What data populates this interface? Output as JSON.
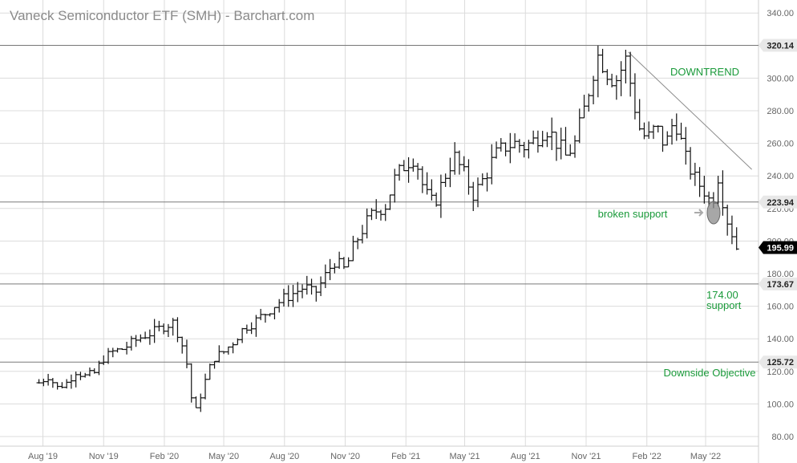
{
  "chart_data": {
    "type": "ohlc",
    "title": "Vaneck Semiconductor ETF (SMH) - Barchart.com",
    "frequency": "weekly",
    "x_tick_labels": [
      "Aug '19",
      "Nov '19",
      "Feb '20",
      "May '20",
      "Aug '20",
      "Nov '20",
      "Feb '21",
      "May '21",
      "Aug '21",
      "Nov '21",
      "Feb '22",
      "May '22"
    ],
    "y_ticks": [
      80,
      100,
      120,
      140,
      160,
      180,
      200,
      220,
      240,
      260,
      280,
      300,
      320,
      340
    ],
    "y_tick_labels": [
      "80.00",
      "100.00",
      "120.00",
      "140.00",
      "160.00",
      "180.00",
      "200.00",
      "220.00",
      "240.00",
      "260.00",
      "280.00",
      "300.00",
      "320.00",
      "340.00"
    ],
    "ylim": [
      76,
      346
    ],
    "grid": true,
    "series_points": [
      [
        "2019-07-26",
        113
      ],
      [
        "2019-08-09",
        117
      ],
      [
        "2019-08-23",
        110
      ],
      [
        "2019-09-06",
        113
      ],
      [
        "2019-09-20",
        120
      ],
      [
        "2019-10-04",
        117
      ],
      [
        "2019-10-18",
        119
      ],
      [
        "2019-11-01",
        128
      ],
      [
        "2019-11-15",
        132
      ],
      [
        "2019-12-01",
        134
      ],
      [
        "2019-12-15",
        138
      ],
      [
        "2020-01-01",
        142
      ],
      [
        "2020-01-15",
        144
      ],
      [
        "2020-02-01",
        148
      ],
      [
        "2020-02-15",
        150
      ],
      [
        "2020-02-25",
        140
      ],
      [
        "2020-03-05",
        128
      ],
      [
        "2020-03-12",
        105
      ],
      [
        "2020-03-20",
        96
      ],
      [
        "2020-04-01",
        112
      ],
      [
        "2020-04-15",
        128
      ],
      [
        "2020-05-01",
        132
      ],
      [
        "2020-05-15",
        138
      ],
      [
        "2020-06-01",
        147
      ],
      [
        "2020-06-15",
        150
      ],
      [
        "2020-07-01",
        155
      ],
      [
        "2020-07-15",
        160
      ],
      [
        "2020-08-01",
        165
      ],
      [
        "2020-08-15",
        168
      ],
      [
        "2020-09-01",
        172
      ],
      [
        "2020-09-15",
        167
      ],
      [
        "2020-10-01",
        178
      ],
      [
        "2020-10-15",
        188
      ],
      [
        "2020-11-01",
        182
      ],
      [
        "2020-11-15",
        198
      ],
      [
        "2020-12-01",
        210
      ],
      [
        "2020-12-15",
        218
      ],
      [
        "2021-01-01",
        222
      ],
      [
        "2021-01-15",
        238
      ],
      [
        "2021-02-01",
        248
      ],
      [
        "2021-02-15",
        252
      ],
      [
        "2021-03-01",
        230
      ],
      [
        "2021-03-15",
        222
      ],
      [
        "2021-04-01",
        240
      ],
      [
        "2021-04-15",
        252
      ],
      [
        "2021-05-01",
        240
      ],
      [
        "2021-05-15",
        228
      ],
      [
        "2021-06-01",
        240
      ],
      [
        "2021-06-15",
        252
      ],
      [
        "2021-07-01",
        258
      ],
      [
        "2021-07-15",
        260
      ],
      [
        "2021-08-01",
        258
      ],
      [
        "2021-08-15",
        262
      ],
      [
        "2021-09-01",
        270
      ],
      [
        "2021-09-15",
        262
      ],
      [
        "2021-10-01",
        252
      ],
      [
        "2021-10-15",
        260
      ],
      [
        "2021-11-01",
        285
      ],
      [
        "2021-11-10",
        302
      ],
      [
        "2021-11-20",
        315
      ],
      [
        "2021-12-01",
        305
      ],
      [
        "2021-12-15",
        298
      ],
      [
        "2022-01-01",
        312
      ],
      [
        "2022-01-10",
        290
      ],
      [
        "2022-01-20",
        270
      ],
      [
        "2022-02-01",
        262
      ],
      [
        "2022-02-15",
        270
      ],
      [
        "2022-03-01",
        258
      ],
      [
        "2022-03-15",
        276
      ],
      [
        "2022-04-01",
        250
      ],
      [
        "2022-04-15",
        238
      ],
      [
        "2022-05-01",
        230
      ],
      [
        "2022-05-10",
        222
      ],
      [
        "2022-05-20",
        240
      ],
      [
        "2022-06-01",
        215
      ],
      [
        "2022-06-10",
        205
      ],
      [
        "2022-06-17",
        196
      ]
    ],
    "price_labels": [
      {
        "value": 320.14,
        "text": "320.14"
      },
      {
        "value": 223.94,
        "text": "223.94"
      },
      {
        "value": 195.99,
        "text": "195.99"
      },
      {
        "value": 173.67,
        "text": "173.67"
      },
      {
        "value": 125.72,
        "text": "125.72"
      }
    ],
    "annotations": {
      "downtrend": "DOWNTREND",
      "broken_support": "broken support",
      "support_value": "174.00",
      "support_word": "support",
      "downside_objective": "Downside Objective"
    },
    "trendline": {
      "start": [
        "2022-01-04",
        316
      ],
      "end": [
        "2022-07-10",
        244
      ]
    },
    "colors": {
      "grid": "#dcdcdc",
      "bars": "#111111",
      "level_lines": "#7a7a7a",
      "annotation_text": "#1a9a3a",
      "price_tag_bg": "#e8e8e8",
      "last_price_bg": "#000000",
      "axis_text": "#666666"
    }
  }
}
